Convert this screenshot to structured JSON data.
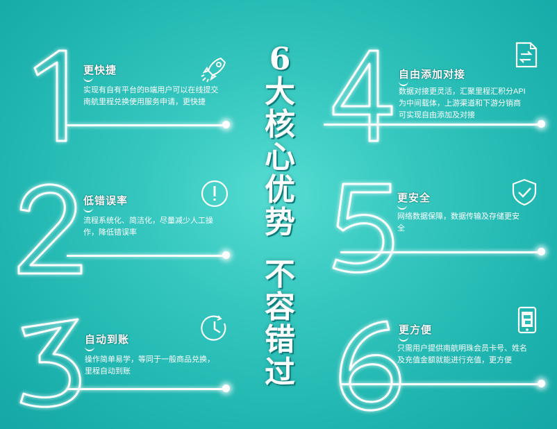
{
  "headline": {
    "lines": [
      "6",
      "大",
      "核",
      "心",
      "优",
      "势",
      "不",
      "容",
      "错",
      "过"
    ]
  },
  "items": [
    {
      "num": "1",
      "title": "更快捷",
      "desc": "实现有自有平台的B端用户可以在线提交南航里程兑换使用服务申请，更快捷",
      "icon": "rocket-icon"
    },
    {
      "num": "2",
      "title": "低错误率",
      "desc": "流程系统化、简洁化，尽量减少人工操作，降低错误率",
      "icon": "exclamation-circle-icon"
    },
    {
      "num": "3",
      "title": "自动到账",
      "desc": "操作简单易学，等同于一般商品兑换，里程自动到账",
      "icon": "clock-icon"
    },
    {
      "num": "4",
      "title": "自由添加对接",
      "desc": "数据对接更灵活，汇聚里程汇积分API为中间载体，上游渠道和下游分销商可实现自由添加及对接",
      "icon": "document-swap-icon"
    },
    {
      "num": "5",
      "title": "更安全",
      "desc": "网络数据保障，数据传输及存储更安全",
      "icon": "shield-check-icon"
    },
    {
      "num": "6",
      "title": "更方便",
      "desc": "只需用户提供南航明珠会员卡号、姓名及充值金额就能进行充值，更方便",
      "icon": "phone-icon"
    }
  ]
}
